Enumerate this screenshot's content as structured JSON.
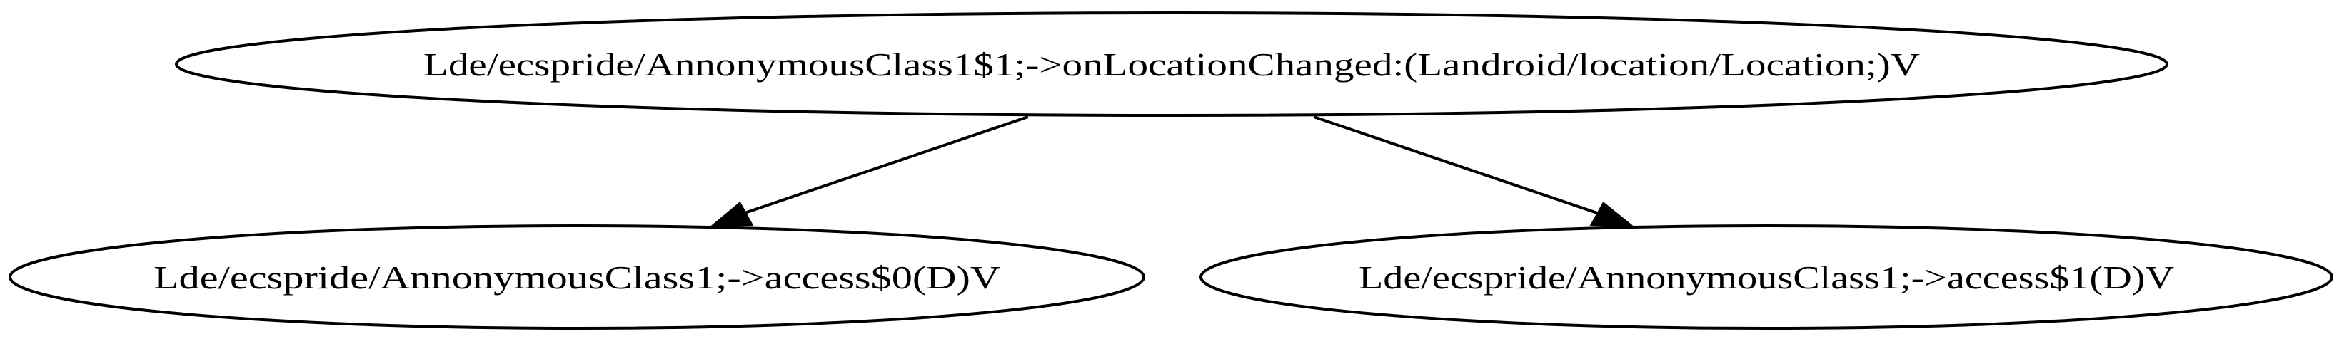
{
  "graph": {
    "nodes": [
      {
        "id": "n0",
        "label": "Lde/ecspride/AnnonymousClass1$1;->onLocationChanged:(Landroid/location/Location;)V"
      },
      {
        "id": "n1",
        "label": "Lde/ecspride/AnnonymousClass1;->access$0(D)V"
      },
      {
        "id": "n2",
        "label": "Lde/ecspride/AnnonymousClass1;->access$1(D)V"
      }
    ],
    "edges": [
      {
        "from": "n0",
        "to": "n1"
      },
      {
        "from": "n0",
        "to": "n2"
      }
    ],
    "colors": {
      "stroke": "#000000",
      "fill": "#ffffff"
    }
  }
}
